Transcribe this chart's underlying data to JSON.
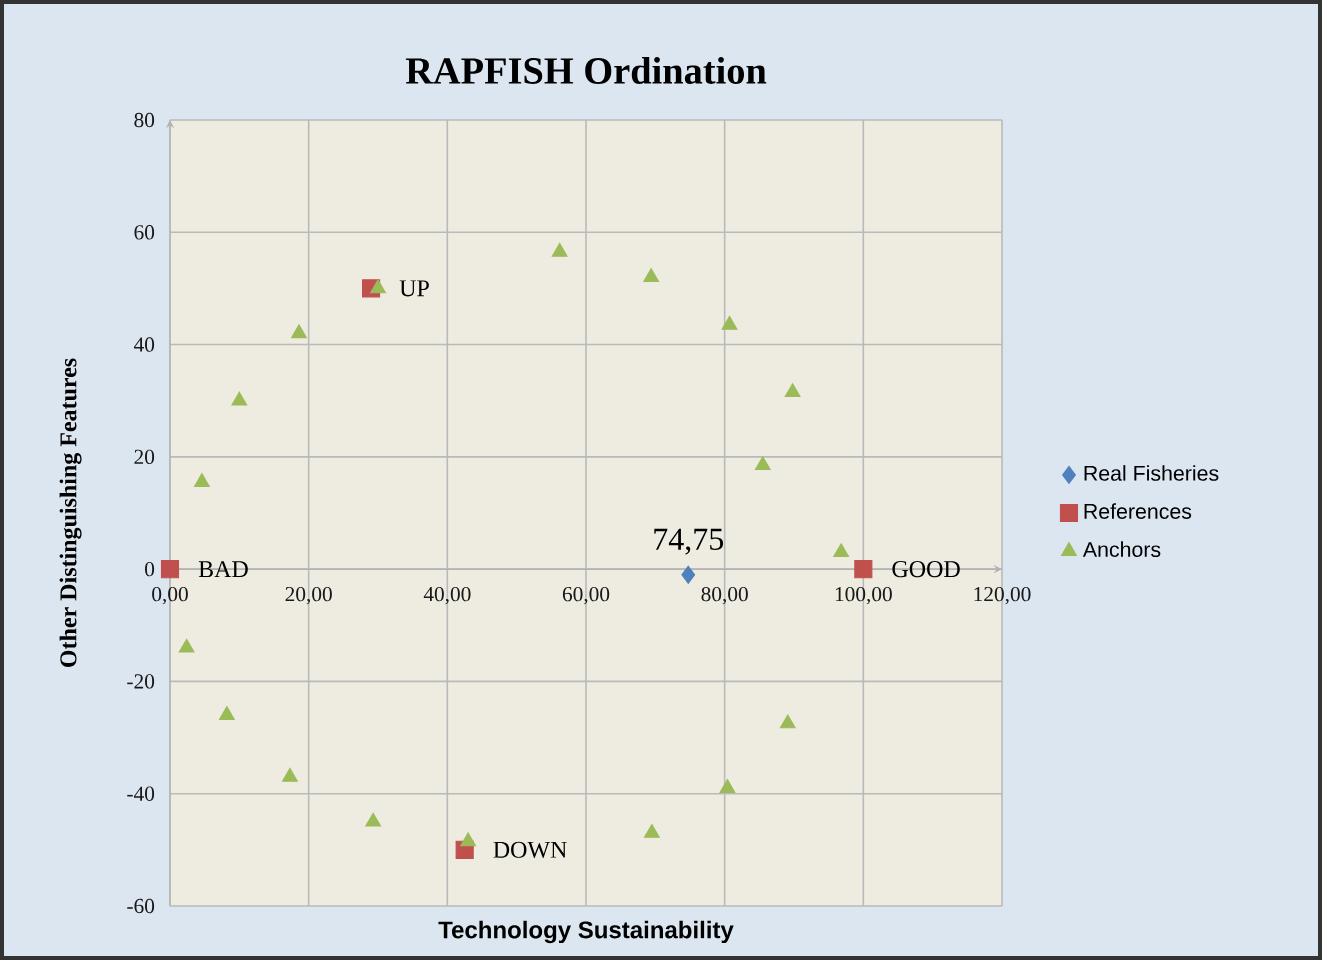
{
  "chart_data": {
    "type": "scatter",
    "title": "RAPFISH Ordination",
    "xlabel": "Technology Sustainability",
    "ylabel": "Other Distinguishing  Features",
    "xlim": [
      0,
      120
    ],
    "ylim": [
      -60,
      80
    ],
    "xticks": [
      {
        "value": 0,
        "label": "0,00"
      },
      {
        "value": 20,
        "label": "20,00"
      },
      {
        "value": 40,
        "label": "40,00"
      },
      {
        "value": 60,
        "label": "60,00"
      },
      {
        "value": 80,
        "label": "80,00"
      },
      {
        "value": 100,
        "label": "100,00"
      },
      {
        "value": 120,
        "label": "120,00"
      }
    ],
    "yticks": [
      -60,
      -40,
      -20,
      0,
      20,
      40,
      60,
      80
    ],
    "grid": true,
    "legend": "right",
    "series": [
      {
        "name": "Real Fisheries",
        "color": "#4f81bd",
        "marker": "diamond",
        "x": [
          74.75
        ],
        "values": [
          -1
        ]
      },
      {
        "name": "References",
        "color": "#c0504d",
        "marker": "square",
        "x": [
          0,
          100,
          29,
          42.5
        ],
        "values": [
          0,
          0,
          50,
          -50
        ]
      },
      {
        "name": "Anchors",
        "color": "#9bbb59",
        "marker": "triangle",
        "x": [
          30,
          18.6,
          10,
          4.6,
          56.2,
          69.4,
          80.7,
          89.8,
          85.5,
          96.8,
          2.4,
          8.2,
          17.3,
          29.3,
          43,
          89.1,
          80.4,
          69.5
        ],
        "values": [
          50,
          42,
          30,
          15.5,
          56.5,
          52,
          43.5,
          31.5,
          18.5,
          3,
          -14,
          -26,
          -37,
          -45,
          -48.5,
          -27.5,
          -39,
          -47
        ]
      }
    ],
    "annotations": [
      {
        "text": "74,75",
        "x": 74.75,
        "y": -1
      },
      {
        "text": "BAD",
        "x": 0,
        "y": 0
      },
      {
        "text": "GOOD",
        "x": 100,
        "y": 0
      },
      {
        "text": "UP",
        "x": 29,
        "y": 50
      },
      {
        "text": "DOWN",
        "x": 42.5,
        "y": -50
      }
    ]
  }
}
